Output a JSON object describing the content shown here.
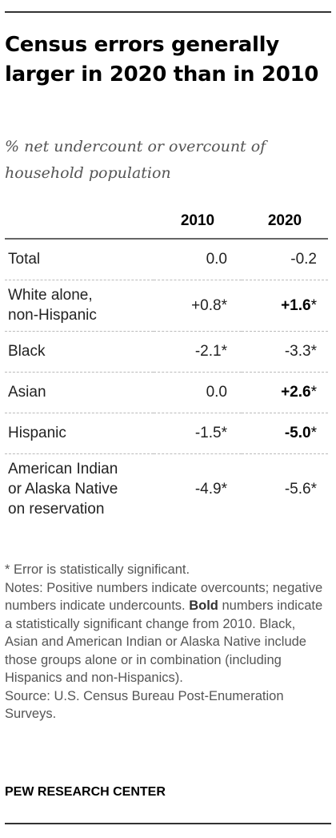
{
  "title": "Census errors generally larger in 2020 than in 2010",
  "subtitle": "% net undercount or overcount of household population",
  "chart_data": {
    "type": "table",
    "title": "Census errors generally larger in 2020 than in 2010",
    "subtitle": "% net undercount or overcount of household population",
    "columns": [
      "2010",
      "2020"
    ],
    "rows": [
      {
        "label": "Total",
        "v2010": "0.0",
        "v2010_ast": "",
        "v2020": "-0.2",
        "v2020_ast": "",
        "v2020_bold": false
      },
      {
        "label": "White alone, non-Hispanic",
        "label_lines": [
          "White alone,",
          "non-Hispanic"
        ],
        "v2010": "+0.8",
        "v2010_ast": "*",
        "v2020": "+1.6",
        "v2020_ast": "*",
        "v2020_bold": true
      },
      {
        "label": "Black",
        "v2010": "-2.1",
        "v2010_ast": "*",
        "v2020": "-3.3",
        "v2020_ast": "*",
        "v2020_bold": false
      },
      {
        "label": "Asian",
        "v2010": "0.0",
        "v2010_ast": "",
        "v2020": "+2.6",
        "v2020_ast": "*",
        "v2020_bold": true
      },
      {
        "label": "Hispanic",
        "v2010": "-1.5",
        "v2010_ast": "*",
        "v2020": "-5.0",
        "v2020_ast": "*",
        "v2020_bold": true
      },
      {
        "label": "American Indian or Alaska Native on reservation",
        "label_lines": [
          "American Indian",
          "or Alaska Native",
          "on reservation"
        ],
        "v2010": "-4.9",
        "v2010_ast": "*",
        "v2020": "-5.6",
        "v2020_ast": "*",
        "v2020_bold": false
      }
    ]
  },
  "footnotes": {
    "significance": "* Error is statistically significant.",
    "notes_before_bold": "Notes: Positive numbers indicate overcounts; negative numbers indicate undercounts. ",
    "bold_word": "Bold",
    "notes_after_bold": " numbers indicate a statistically significant change from 2010. Black, Asian and American Indian or Alaska Native include those groups alone or in combination (including Hispanics and non-Hispanics).",
    "source": "Source:  U.S. Census Bureau Post-Enumeration Surveys."
  },
  "brand": "PEW RESEARCH CENTER"
}
